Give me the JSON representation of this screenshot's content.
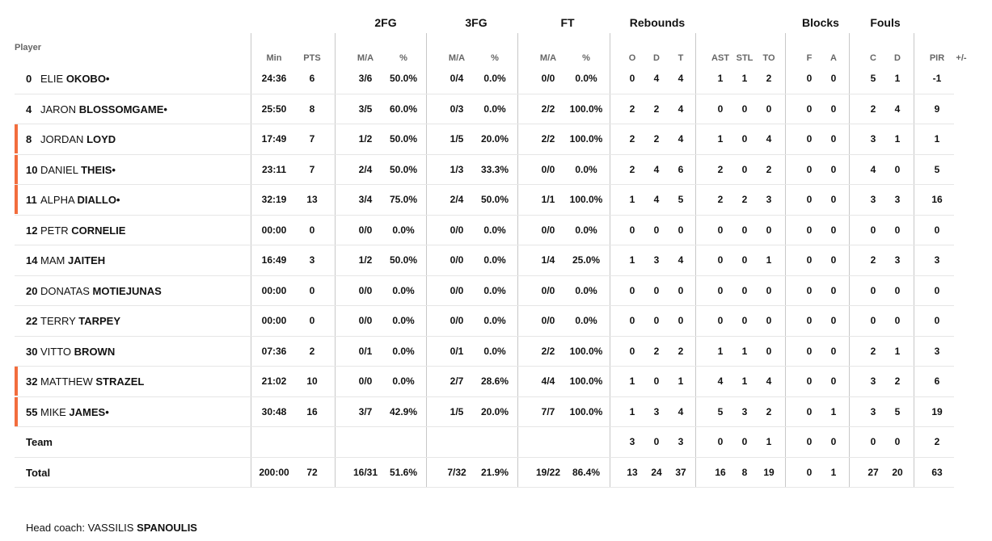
{
  "groups": {
    "fg2": "2FG",
    "fg3": "3FG",
    "ft": "FT",
    "rebounds": "Rebounds",
    "blocks": "Blocks",
    "fouls": "Fouls"
  },
  "headers": {
    "player": "Player",
    "min": "Min",
    "pts": "PTS",
    "fg2_ma": "M/A",
    "fg2_pct": "%",
    "fg3_ma": "M/A",
    "fg3_pct": "%",
    "ft_ma": "M/A",
    "ft_pct": "%",
    "reb_o": "O",
    "reb_d": "D",
    "reb_t": "T",
    "ast": "AST",
    "stl": "STL",
    "to": "TO",
    "blk_f": "F",
    "blk_a": "A",
    "foul_c": "C",
    "foul_d": "D",
    "pir": "PIR",
    "pm": "+/-"
  },
  "players": [
    {
      "num": "0",
      "first": "ELIE",
      "last": "OKOBO•",
      "accent": false,
      "min": "24:36",
      "pts": "6",
      "fg2_ma": "3/6",
      "fg2_pct": "50.0%",
      "fg3_ma": "0/4",
      "fg3_pct": "0.0%",
      "ft_ma": "0/0",
      "ft_pct": "0.0%",
      "reb_o": "0",
      "reb_d": "4",
      "reb_t": "4",
      "ast": "1",
      "stl": "1",
      "to": "2",
      "blk_f": "0",
      "blk_a": "0",
      "foul_c": "5",
      "foul_d": "1",
      "pir": "-1",
      "pm": ""
    },
    {
      "num": "4",
      "first": "JARON",
      "last": "BLOSSOMGAME•",
      "accent": false,
      "min": "25:50",
      "pts": "8",
      "fg2_ma": "3/5",
      "fg2_pct": "60.0%",
      "fg3_ma": "0/3",
      "fg3_pct": "0.0%",
      "ft_ma": "2/2",
      "ft_pct": "100.0%",
      "reb_o": "2",
      "reb_d": "2",
      "reb_t": "4",
      "ast": "0",
      "stl": "0",
      "to": "0",
      "blk_f": "0",
      "blk_a": "0",
      "foul_c": "2",
      "foul_d": "4",
      "pir": "9",
      "pm": ""
    },
    {
      "num": "8",
      "first": "JORDAN",
      "last": "LOYD",
      "accent": true,
      "min": "17:49",
      "pts": "7",
      "fg2_ma": "1/2",
      "fg2_pct": "50.0%",
      "fg3_ma": "1/5",
      "fg3_pct": "20.0%",
      "ft_ma": "2/2",
      "ft_pct": "100.0%",
      "reb_o": "2",
      "reb_d": "2",
      "reb_t": "4",
      "ast": "1",
      "stl": "0",
      "to": "4",
      "blk_f": "0",
      "blk_a": "0",
      "foul_c": "3",
      "foul_d": "1",
      "pir": "1",
      "pm": ""
    },
    {
      "num": "10",
      "first": "DANIEL",
      "last": "THEIS•",
      "accent": true,
      "min": "23:11",
      "pts": "7",
      "fg2_ma": "2/4",
      "fg2_pct": "50.0%",
      "fg3_ma": "1/3",
      "fg3_pct": "33.3%",
      "ft_ma": "0/0",
      "ft_pct": "0.0%",
      "reb_o": "2",
      "reb_d": "4",
      "reb_t": "6",
      "ast": "2",
      "stl": "0",
      "to": "2",
      "blk_f": "0",
      "blk_a": "0",
      "foul_c": "4",
      "foul_d": "0",
      "pir": "5",
      "pm": ""
    },
    {
      "num": "11",
      "first": "ALPHA",
      "last": "DIALLO•",
      "accent": true,
      "min": "32:19",
      "pts": "13",
      "fg2_ma": "3/4",
      "fg2_pct": "75.0%",
      "fg3_ma": "2/4",
      "fg3_pct": "50.0%",
      "ft_ma": "1/1",
      "ft_pct": "100.0%",
      "reb_o": "1",
      "reb_d": "4",
      "reb_t": "5",
      "ast": "2",
      "stl": "2",
      "to": "3",
      "blk_f": "0",
      "blk_a": "0",
      "foul_c": "3",
      "foul_d": "3",
      "pir": "16",
      "pm": ""
    },
    {
      "num": "12",
      "first": "PETR",
      "last": "CORNELIE",
      "accent": false,
      "min": "00:00",
      "pts": "0",
      "fg2_ma": "0/0",
      "fg2_pct": "0.0%",
      "fg3_ma": "0/0",
      "fg3_pct": "0.0%",
      "ft_ma": "0/0",
      "ft_pct": "0.0%",
      "reb_o": "0",
      "reb_d": "0",
      "reb_t": "0",
      "ast": "0",
      "stl": "0",
      "to": "0",
      "blk_f": "0",
      "blk_a": "0",
      "foul_c": "0",
      "foul_d": "0",
      "pir": "0",
      "pm": ""
    },
    {
      "num": "14",
      "first": "MAM",
      "last": "JAITEH",
      "accent": false,
      "min": "16:49",
      "pts": "3",
      "fg2_ma": "1/2",
      "fg2_pct": "50.0%",
      "fg3_ma": "0/0",
      "fg3_pct": "0.0%",
      "ft_ma": "1/4",
      "ft_pct": "25.0%",
      "reb_o": "1",
      "reb_d": "3",
      "reb_t": "4",
      "ast": "0",
      "stl": "0",
      "to": "1",
      "blk_f": "0",
      "blk_a": "0",
      "foul_c": "2",
      "foul_d": "3",
      "pir": "3",
      "pm": ""
    },
    {
      "num": "20",
      "first": "DONATAS",
      "last": "MOTIEJUNAS",
      "accent": false,
      "min": "00:00",
      "pts": "0",
      "fg2_ma": "0/0",
      "fg2_pct": "0.0%",
      "fg3_ma": "0/0",
      "fg3_pct": "0.0%",
      "ft_ma": "0/0",
      "ft_pct": "0.0%",
      "reb_o": "0",
      "reb_d": "0",
      "reb_t": "0",
      "ast": "0",
      "stl": "0",
      "to": "0",
      "blk_f": "0",
      "blk_a": "0",
      "foul_c": "0",
      "foul_d": "0",
      "pir": "0",
      "pm": ""
    },
    {
      "num": "22",
      "first": "TERRY",
      "last": "TARPEY",
      "accent": false,
      "min": "00:00",
      "pts": "0",
      "fg2_ma": "0/0",
      "fg2_pct": "0.0%",
      "fg3_ma": "0/0",
      "fg3_pct": "0.0%",
      "ft_ma": "0/0",
      "ft_pct": "0.0%",
      "reb_o": "0",
      "reb_d": "0",
      "reb_t": "0",
      "ast": "0",
      "stl": "0",
      "to": "0",
      "blk_f": "0",
      "blk_a": "0",
      "foul_c": "0",
      "foul_d": "0",
      "pir": "0",
      "pm": ""
    },
    {
      "num": "30",
      "first": "VITTO",
      "last": "BROWN",
      "accent": false,
      "min": "07:36",
      "pts": "2",
      "fg2_ma": "0/1",
      "fg2_pct": "0.0%",
      "fg3_ma": "0/1",
      "fg3_pct": "0.0%",
      "ft_ma": "2/2",
      "ft_pct": "100.0%",
      "reb_o": "0",
      "reb_d": "2",
      "reb_t": "2",
      "ast": "1",
      "stl": "1",
      "to": "0",
      "blk_f": "0",
      "blk_a": "0",
      "foul_c": "2",
      "foul_d": "1",
      "pir": "3",
      "pm": ""
    },
    {
      "num": "32",
      "first": "MATTHEW",
      "last": "STRAZEL",
      "accent": true,
      "min": "21:02",
      "pts": "10",
      "fg2_ma": "0/0",
      "fg2_pct": "0.0%",
      "fg3_ma": "2/7",
      "fg3_pct": "28.6%",
      "ft_ma": "4/4",
      "ft_pct": "100.0%",
      "reb_o": "1",
      "reb_d": "0",
      "reb_t": "1",
      "ast": "4",
      "stl": "1",
      "to": "4",
      "blk_f": "0",
      "blk_a": "0",
      "foul_c": "3",
      "foul_d": "2",
      "pir": "6",
      "pm": ""
    },
    {
      "num": "55",
      "first": "MIKE",
      "last": "JAMES•",
      "accent": true,
      "min": "30:48",
      "pts": "16",
      "fg2_ma": "3/7",
      "fg2_pct": "42.9%",
      "fg3_ma": "1/5",
      "fg3_pct": "20.0%",
      "ft_ma": "7/7",
      "ft_pct": "100.0%",
      "reb_o": "1",
      "reb_d": "3",
      "reb_t": "4",
      "ast": "5",
      "stl": "3",
      "to": "2",
      "blk_f": "0",
      "blk_a": "1",
      "foul_c": "3",
      "foul_d": "5",
      "pir": "19",
      "pm": ""
    }
  ],
  "team": {
    "label": "Team",
    "min": "",
    "pts": "",
    "fg2_ma": "",
    "fg2_pct": "",
    "fg3_ma": "",
    "fg3_pct": "",
    "ft_ma": "",
    "ft_pct": "",
    "reb_o": "3",
    "reb_d": "0",
    "reb_t": "3",
    "ast": "0",
    "stl": "0",
    "to": "1",
    "blk_f": "0",
    "blk_a": "0",
    "foul_c": "0",
    "foul_d": "0",
    "pir": "2",
    "pm": ""
  },
  "total": {
    "label": "Total",
    "min": "200:00",
    "pts": "72",
    "fg2_ma": "16/31",
    "fg2_pct": "51.6%",
    "fg3_ma": "7/32",
    "fg3_pct": "21.9%",
    "ft_ma": "19/22",
    "ft_pct": "86.4%",
    "reb_o": "13",
    "reb_d": "24",
    "reb_t": "37",
    "ast": "16",
    "stl": "8",
    "to": "19",
    "blk_f": "0",
    "blk_a": "1",
    "foul_c": "27",
    "foul_d": "20",
    "pir": "63",
    "pm": ""
  },
  "coach": {
    "label": "Head coach:",
    "first": "VASSILIS",
    "last": "SPANOULIS"
  },
  "colors": {
    "accent": "#f26d3d",
    "divider": "#c8c8c8",
    "rowline": "#e6e6e6"
  }
}
